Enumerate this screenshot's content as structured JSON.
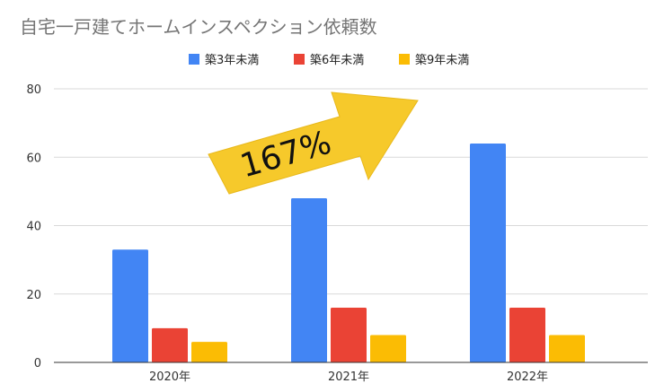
{
  "chart_data": {
    "type": "bar",
    "title": "自宅一戸建てホームインスペクション依頼数",
    "categories": [
      "2020年",
      "2021年",
      "2022年"
    ],
    "series": [
      {
        "name": "築3年未満",
        "color": "#4285F4",
        "values": [
          33,
          48,
          64
        ]
      },
      {
        "name": "築6年未満",
        "color": "#EA4335",
        "values": [
          10,
          16,
          16
        ]
      },
      {
        "name": "築9年未満",
        "color": "#FBBC04",
        "values": [
          6,
          8,
          8
        ]
      }
    ],
    "y_ticks": [
      "0",
      "20",
      "40",
      "60",
      "80"
    ],
    "ylim": [
      0,
      80
    ],
    "grid": true,
    "legend_position": "top",
    "annotation": {
      "text": "167%",
      "color": "#F6C92B"
    }
  }
}
